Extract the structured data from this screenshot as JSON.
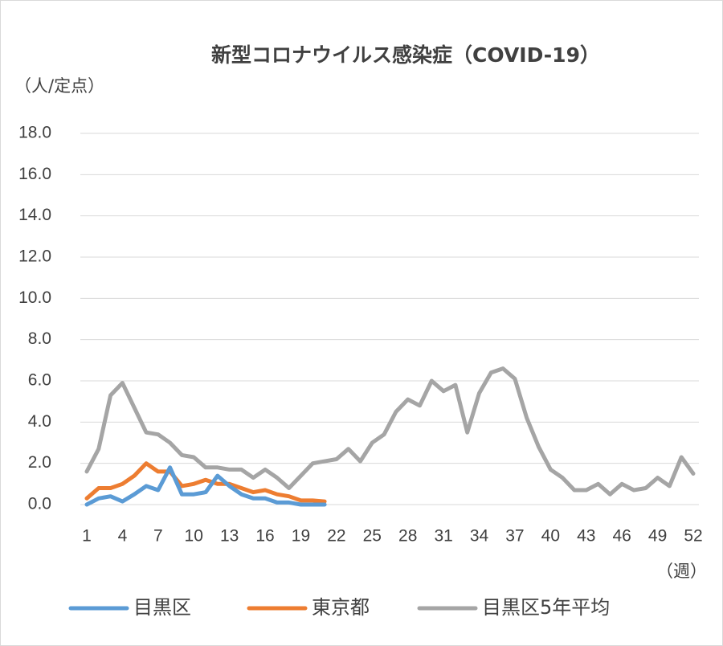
{
  "chart_data": {
    "type": "line",
    "title": "新型コロナウイルス感染症（COVID-19）",
    "y_label": "（人/定点）",
    "x_label": "（週）",
    "categories": [
      "1",
      null,
      null,
      "4",
      null,
      null,
      "7",
      null,
      null,
      "10",
      null,
      null,
      "13",
      null,
      null,
      "16",
      null,
      null,
      "19",
      null,
      null,
      "22",
      null,
      null,
      "25",
      null,
      null,
      "28",
      null,
      null,
      "31",
      null,
      null,
      "34",
      null,
      null,
      "37",
      null,
      null,
      "40",
      null,
      null,
      "43",
      null,
      null,
      "46",
      null,
      null,
      "49",
      null,
      null,
      "52"
    ],
    "series": [
      {
        "name": "目黒区",
        "color": "#5b9bd5",
        "values": [
          0.0,
          0.3,
          0.4,
          0.15,
          0.5,
          0.9,
          0.7,
          1.8,
          0.5,
          0.5,
          0.6,
          1.4,
          0.9,
          0.5,
          0.3,
          0.3,
          0.1,
          0.1,
          0.0,
          0.0,
          0.0,
          null,
          null,
          null,
          null,
          null,
          null,
          null,
          null,
          null,
          null,
          null,
          null,
          null,
          null,
          null,
          null,
          null,
          null,
          null,
          null,
          null,
          null,
          null,
          null,
          null,
          null,
          null,
          null,
          null,
          null,
          null
        ]
      },
      {
        "name": "東京都",
        "color": "#ed7d31",
        "values": [
          0.3,
          0.8,
          0.8,
          1.0,
          1.4,
          2.0,
          1.6,
          1.6,
          0.9,
          1.0,
          1.2,
          1.0,
          1.0,
          0.8,
          0.6,
          0.7,
          0.5,
          0.4,
          0.2,
          0.2,
          0.15,
          null,
          null,
          null,
          null,
          null,
          null,
          null,
          null,
          null,
          null,
          null,
          null,
          null,
          null,
          null,
          null,
          null,
          null,
          null,
          null,
          null,
          null,
          null,
          null,
          null,
          null,
          null,
          null,
          null,
          null,
          null
        ]
      },
      {
        "name": "目黒区5年平均",
        "color": "#a5a5a5",
        "values": [
          1.6,
          2.7,
          5.3,
          5.9,
          4.7,
          3.5,
          3.4,
          3.0,
          2.4,
          2.3,
          1.8,
          1.8,
          1.7,
          1.7,
          1.3,
          1.7,
          1.3,
          0.8,
          1.4,
          2.0,
          2.1,
          2.2,
          2.7,
          2.1,
          3.0,
          3.4,
          4.5,
          5.1,
          4.8,
          6.0,
          5.5,
          5.8,
          3.5,
          5.4,
          6.4,
          6.6,
          6.1,
          4.2,
          2.8,
          1.7,
          1.3,
          0.7,
          0.7,
          1.0,
          0.5,
          1.0,
          0.7,
          0.8,
          1.3,
          0.9,
          2.3,
          1.5
        ]
      }
    ],
    "ylim": [
      0,
      18
    ],
    "yticks": [
      {
        "value": 0,
        "label": "0.0"
      },
      {
        "value": 2,
        "label": "2.0"
      },
      {
        "value": 4,
        "label": "4.0"
      },
      {
        "value": 6,
        "label": "6.0"
      },
      {
        "value": 8,
        "label": "8.0"
      },
      {
        "value": 10,
        "label": "10.0"
      },
      {
        "value": 12,
        "label": "12.0"
      },
      {
        "value": 14,
        "label": "14.0"
      },
      {
        "value": 16,
        "label": "16.0"
      },
      {
        "value": 18,
        "label": "18.0"
      }
    ],
    "grid": true
  }
}
